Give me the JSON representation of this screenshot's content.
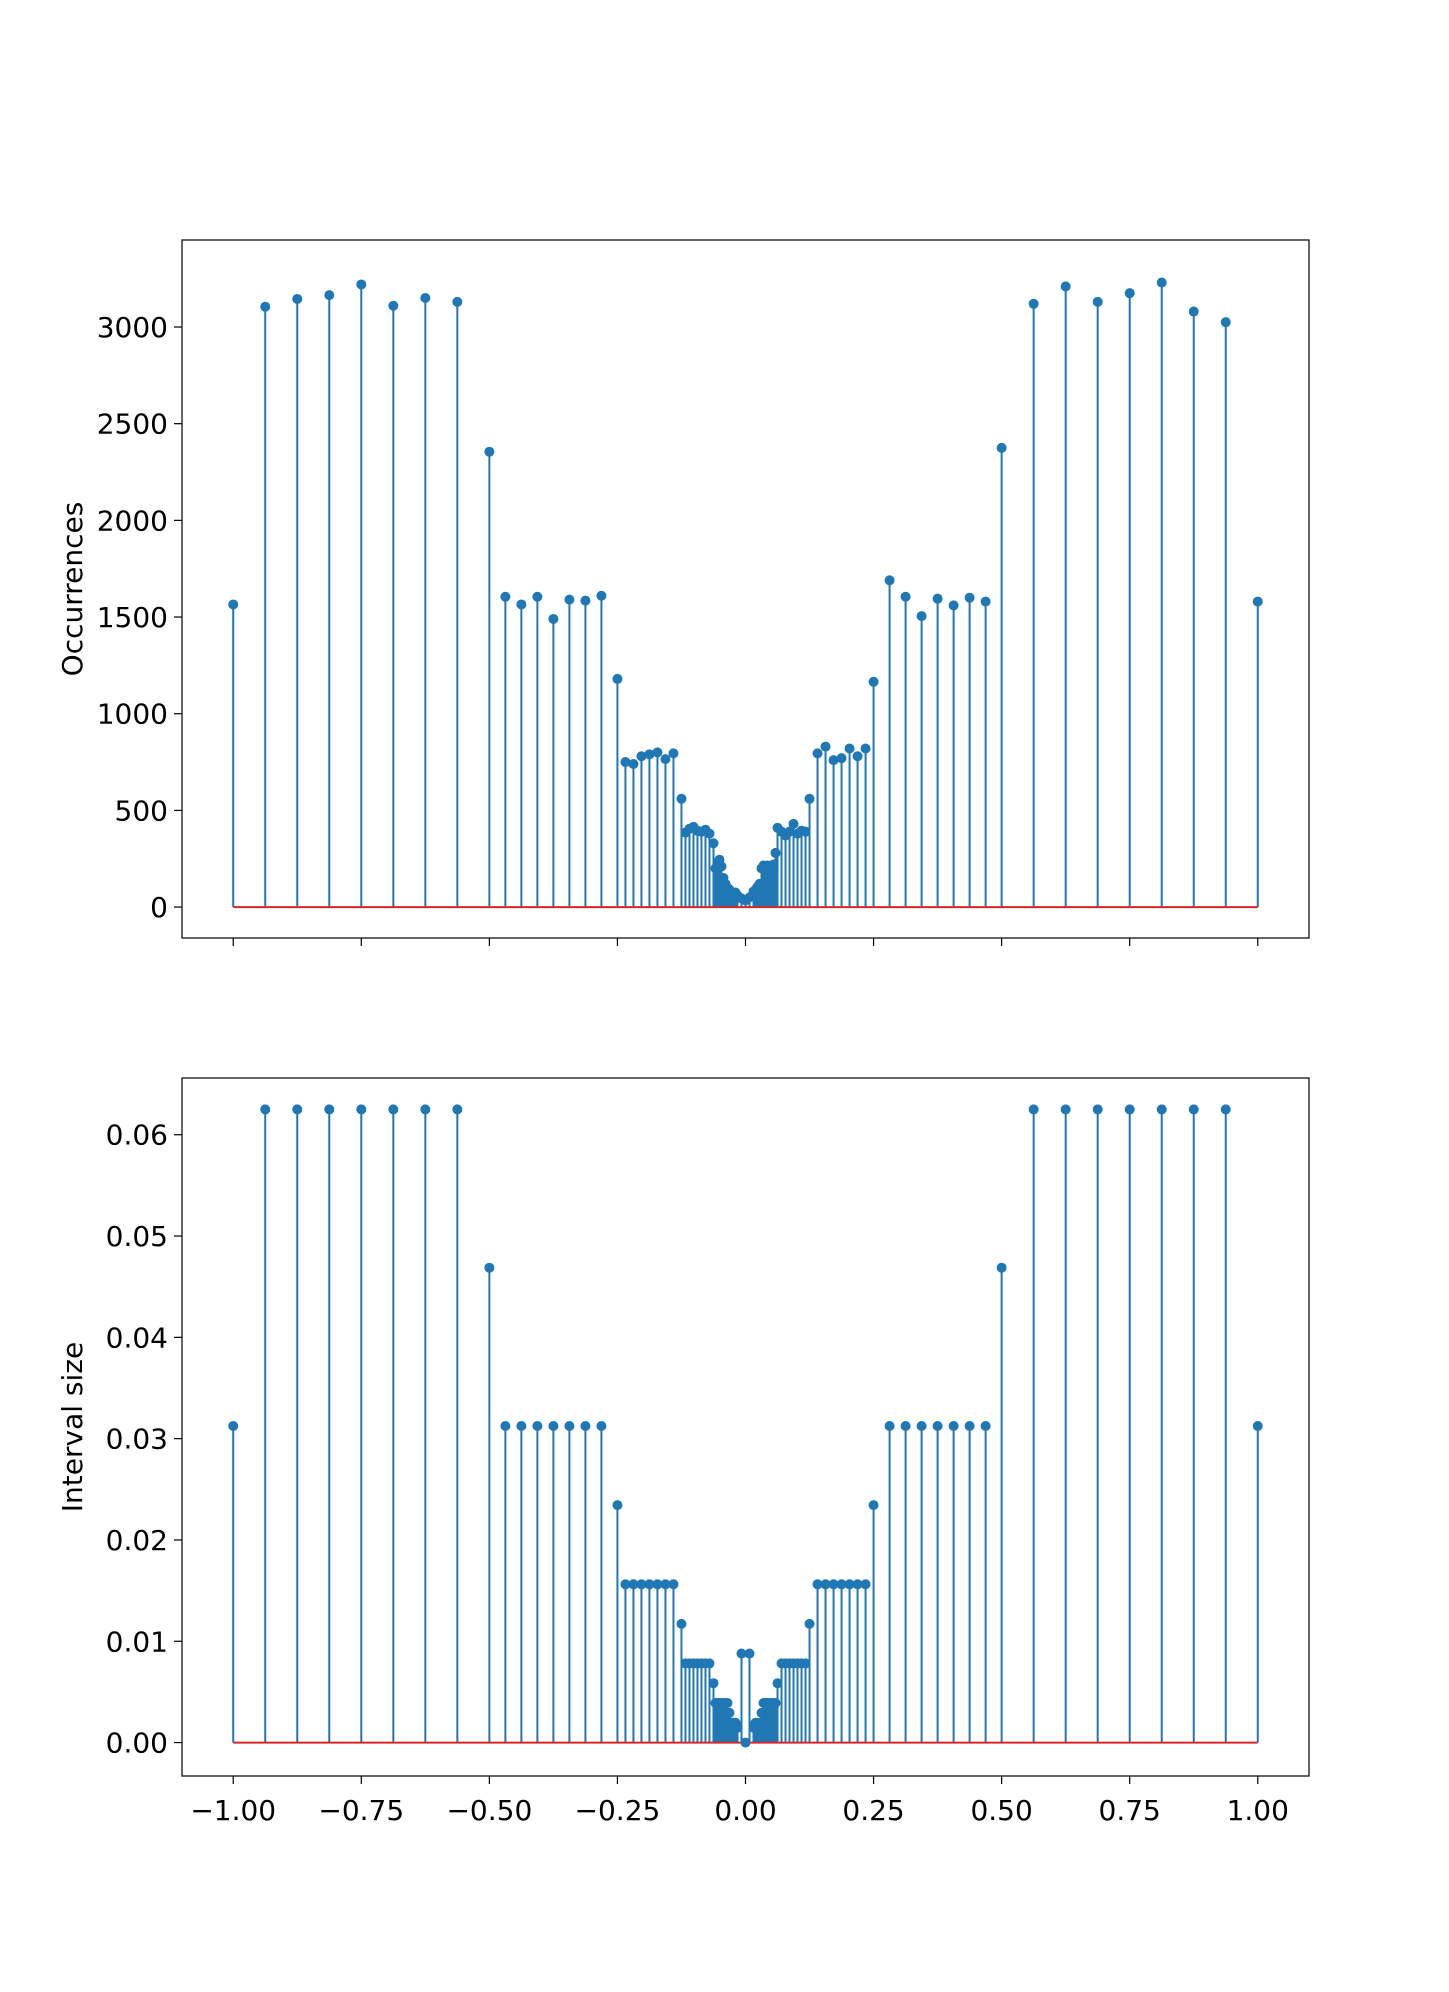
{
  "chart_data": [
    {
      "type": "stem",
      "title": "",
      "xlabel": "",
      "ylabel": "Occurrences",
      "xlim": [
        -1.1,
        1.1
      ],
      "ylim": [
        -160,
        3450
      ],
      "xticks": [
        -1.0,
        -0.75,
        -0.5,
        -0.25,
        0.0,
        0.25,
        0.5,
        0.75,
        1.0
      ],
      "xtick_labels_visible": false,
      "yticks": [
        0,
        500,
        1000,
        1500,
        2000,
        2500,
        3000
      ],
      "ytick_labels": [
        "0",
        "500",
        "1000",
        "1500",
        "2000",
        "2500",
        "3000"
      ],
      "grid": false,
      "colors": {
        "stem": "#1f77b4",
        "marker": "#1f77b4",
        "baseline": "#d62728"
      },
      "series": [
        {
          "x": [
            -1.0,
            -0.9375,
            -0.875,
            -0.8125,
            -0.75,
            -0.6875,
            -0.625,
            -0.5625,
            -0.5,
            -0.46875,
            -0.4375,
            -0.40625,
            -0.375,
            -0.34375,
            -0.3125,
            -0.28125,
            -0.25,
            -0.234375,
            -0.21875,
            -0.203125,
            -0.1875,
            -0.171875,
            -0.15625,
            -0.140625,
            -0.125,
            -0.1171875,
            -0.109375,
            -0.1015625,
            -0.09375,
            -0.0859375,
            -0.078125,
            -0.0703125,
            -0.0625,
            -0.05859375,
            -0.0546875,
            -0.05078125,
            -0.046875,
            -0.04296875,
            -0.0390625,
            -0.03515625,
            -0.03125,
            -0.02734375,
            -0.0234375,
            -0.01953125,
            -0.015625,
            -0.0078125,
            0.0,
            0.0078125,
            0.015625,
            0.01953125,
            0.0234375,
            0.02734375,
            0.03125,
            0.03515625,
            0.0390625,
            0.04296875,
            0.046875,
            0.05078125,
            0.0546875,
            0.05859375,
            0.0625,
            0.0703125,
            0.078125,
            0.0859375,
            0.09375,
            0.1015625,
            0.109375,
            0.1171875,
            0.125,
            0.140625,
            0.15625,
            0.171875,
            0.1875,
            0.203125,
            0.21875,
            0.234375,
            0.25,
            0.28125,
            0.3125,
            0.34375,
            0.375,
            0.40625,
            0.4375,
            0.46875,
            0.5,
            0.5625,
            0.625,
            0.6875,
            0.75,
            0.8125,
            0.875,
            0.9375,
            1.0
          ],
          "y": [
            1565,
            3105,
            3145,
            3165,
            3220,
            3110,
            3150,
            3130,
            2355,
            1605,
            1565,
            1605,
            1490,
            1590,
            1585,
            1610,
            1180,
            750,
            740,
            780,
            790,
            800,
            765,
            795,
            560,
            385,
            405,
            415,
            395,
            390,
            400,
            380,
            330,
            200,
            230,
            245,
            210,
            150,
            120,
            100,
            90,
            65,
            55,
            75,
            60,
            45,
            35,
            50,
            80,
            90,
            105,
            120,
            200,
            215,
            210,
            215,
            210,
            180,
            220,
            280,
            410,
            390,
            370,
            390,
            430,
            380,
            395,
            390,
            560,
            795,
            830,
            760,
            770,
            820,
            780,
            820,
            1165,
            1690,
            1605,
            1505,
            1595,
            1560,
            1600,
            1580,
            2375,
            3120,
            3210,
            3130,
            3175,
            3230,
            3080,
            3025,
            1580
          ]
        }
      ]
    },
    {
      "type": "stem",
      "title": "",
      "xlabel": "",
      "ylabel": "Interval size",
      "xlim": [
        -1.1,
        1.1
      ],
      "ylim": [
        -0.0033,
        0.0656
      ],
      "xticks": [
        -1.0,
        -0.75,
        -0.5,
        -0.25,
        0.0,
        0.25,
        0.5,
        0.75,
        1.0
      ],
      "xtick_labels": [
        "−1.00",
        "−0.75",
        "−0.50",
        "−0.25",
        "0.00",
        "0.25",
        "0.50",
        "0.75",
        "1.00"
      ],
      "yticks": [
        0.0,
        0.01,
        0.02,
        0.03,
        0.04,
        0.05,
        0.06
      ],
      "ytick_labels": [
        "0.00",
        "0.01",
        "0.02",
        "0.03",
        "0.04",
        "0.05",
        "0.06"
      ],
      "grid": false,
      "colors": {
        "stem": "#1f77b4",
        "marker": "#1f77b4",
        "baseline": "#d62728"
      },
      "series": [
        {
          "x": [
            -1.0,
            -0.9375,
            -0.875,
            -0.8125,
            -0.75,
            -0.6875,
            -0.625,
            -0.5625,
            -0.5,
            -0.46875,
            -0.4375,
            -0.40625,
            -0.375,
            -0.34375,
            -0.3125,
            -0.28125,
            -0.25,
            -0.234375,
            -0.21875,
            -0.203125,
            -0.1875,
            -0.171875,
            -0.15625,
            -0.140625,
            -0.125,
            -0.1171875,
            -0.109375,
            -0.1015625,
            -0.09375,
            -0.0859375,
            -0.078125,
            -0.0703125,
            -0.0625,
            -0.05859375,
            -0.0546875,
            -0.05078125,
            -0.046875,
            -0.04296875,
            -0.0390625,
            -0.03515625,
            -0.03125,
            -0.02734375,
            -0.0234375,
            -0.01953125,
            -0.015625,
            -0.0078125,
            0.0,
            0.0078125,
            0.015625,
            0.01953125,
            0.0234375,
            0.02734375,
            0.03125,
            0.03515625,
            0.0390625,
            0.04296875,
            0.046875,
            0.05078125,
            0.0546875,
            0.05859375,
            0.0625,
            0.0703125,
            0.078125,
            0.0859375,
            0.09375,
            0.1015625,
            0.109375,
            0.1171875,
            0.125,
            0.140625,
            0.15625,
            0.171875,
            0.1875,
            0.203125,
            0.21875,
            0.234375,
            0.25,
            0.28125,
            0.3125,
            0.34375,
            0.375,
            0.40625,
            0.4375,
            0.46875,
            0.5,
            0.5625,
            0.625,
            0.6875,
            0.75,
            0.8125,
            0.875,
            0.9375,
            1.0
          ],
          "y": [
            0.03125,
            0.0625,
            0.0625,
            0.0625,
            0.0625,
            0.0625,
            0.0625,
            0.0625,
            0.046875,
            0.03125,
            0.03125,
            0.03125,
            0.03125,
            0.03125,
            0.03125,
            0.03125,
            0.0234375,
            0.015625,
            0.015625,
            0.015625,
            0.015625,
            0.015625,
            0.015625,
            0.015625,
            0.01171875,
            0.0078125,
            0.0078125,
            0.0078125,
            0.0078125,
            0.0078125,
            0.0078125,
            0.0078125,
            0.005859375,
            0.00390625,
            0.00390625,
            0.00390625,
            0.00390625,
            0.00390625,
            0.00390625,
            0.00390625,
            0.0029296875,
            0.001953125,
            0.001953125,
            0.001953125,
            0.00146484375,
            0.0087890625,
            0.0,
            0.0087890625,
            0.00146484375,
            0.001953125,
            0.001953125,
            0.001953125,
            0.0029296875,
            0.00390625,
            0.00390625,
            0.00390625,
            0.00390625,
            0.00390625,
            0.00390625,
            0.00390625,
            0.005859375,
            0.0078125,
            0.0078125,
            0.0078125,
            0.0078125,
            0.0078125,
            0.0078125,
            0.0078125,
            0.01171875,
            0.015625,
            0.015625,
            0.015625,
            0.015625,
            0.015625,
            0.015625,
            0.015625,
            0.0234375,
            0.03125,
            0.03125,
            0.03125,
            0.03125,
            0.03125,
            0.03125,
            0.03125,
            0.046875,
            0.0625,
            0.0625,
            0.0625,
            0.0625,
            0.0625,
            0.0625,
            0.0625,
            0.03125
          ]
        }
      ]
    }
  ]
}
